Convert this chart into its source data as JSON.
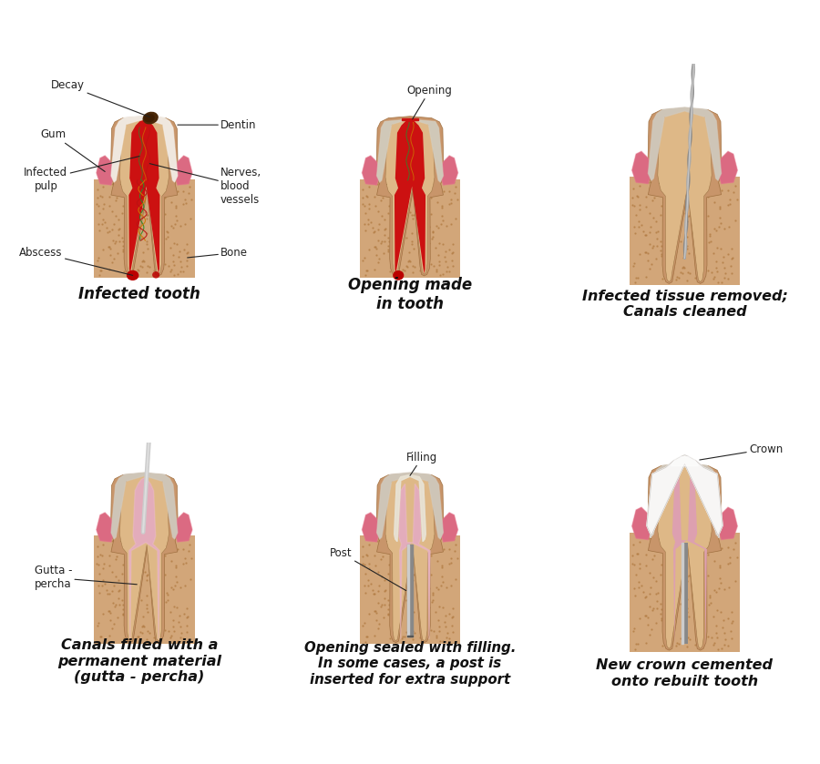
{
  "background_color": "#ffffff",
  "panel_captions": [
    "Infected tooth",
    "Opening made\nin tooth",
    "Infected tissue removed;\nCanals cleaned",
    "Canals filled with a\npermanent material\n(gutta - percha)",
    "Opening sealed with filling.\nIn some cases, a post is\ninserted for extra support",
    "New crown cemented\nonto rebuilt tooth"
  ],
  "colors": {
    "dentin": "#c8956a",
    "dentin_light": "#deb887",
    "pulp_red": "#cc1111",
    "pulp_dark_red": "#aa0000",
    "gum": "#d4607a",
    "gum_light": "#e87a90",
    "bone": "#d2a679",
    "bone_dark": "#b8865a",
    "decay": "#4a2808",
    "abscess": "#bb0000",
    "enamel": "#e8ddd0",
    "enamel_light": "#f5f0ea",
    "nerves_green": "#2a8a2a",
    "nerves_orange": "#cc7700",
    "nerves_red": "#bb1111",
    "gutta_percha": "#dda0b0",
    "gutta_light": "#eec0cc",
    "post_dark": "#888888",
    "post_light": "#cccccc",
    "filling_cream": "#ddd5c0",
    "filling_light": "#eee8dc",
    "crown_white": "#f0eeec",
    "crown_highlight": "#ffffff",
    "file_blue": "#5588bb",
    "file_shaft": "#999999",
    "plugger_gray": "#aaaaaa",
    "plugger_light": "#dddddd",
    "inner_layer": "#c8a882",
    "root_tip_tan": "#c09060",
    "stipple": "#b07840"
  },
  "label_fontsize": 8.5,
  "caption_fontsize": 12,
  "annotation_color": "#222222"
}
